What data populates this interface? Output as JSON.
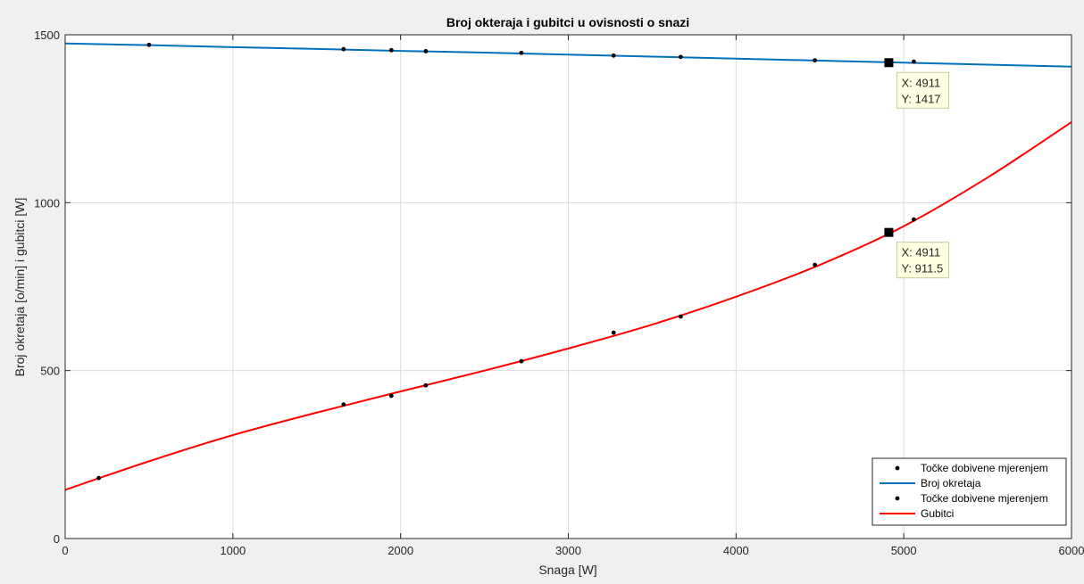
{
  "chart_data": {
    "type": "line",
    "title": "Broj okteraja i gubitci u ovisnosti o snazi",
    "xlabel": "Snaga [W]",
    "ylabel": "Broj okretaja [o/min] i gubitci [W]",
    "xlim": [
      0,
      6000
    ],
    "ylim": [
      0,
      1500
    ],
    "xticks": [
      0,
      1000,
      2000,
      3000,
      4000,
      5000,
      6000
    ],
    "yticks": [
      0,
      500,
      1000,
      1500
    ],
    "grid": true,
    "legend_position": "bottom-right",
    "series": [
      {
        "name": "Točke dobivene mjerenjem",
        "kind": "markers",
        "color": "#000000",
        "x": [
          500,
          1660,
          1945,
          2150,
          2720,
          3270,
          3670,
          4470,
          5060
        ],
        "y": [
          1470,
          1457,
          1454,
          1451,
          1446,
          1438,
          1434,
          1424,
          1420
        ]
      },
      {
        "name": "Broj okretaja",
        "kind": "line",
        "color": "#0072bd",
        "x": [
          0,
          500,
          1000,
          1500,
          2000,
          2500,
          3000,
          3500,
          4000,
          4500,
          5000,
          5500,
          6000
        ],
        "y": [
          1474,
          1469,
          1463,
          1458,
          1452,
          1447,
          1441,
          1435,
          1429,
          1423,
          1417,
          1411,
          1405
        ]
      },
      {
        "name": "Točke dobivene mjerenjem",
        "kind": "markers",
        "color": "#000000",
        "x": [
          200,
          1660,
          1945,
          2150,
          2720,
          3270,
          3670,
          4470,
          5060
        ],
        "y": [
          180,
          399,
          425,
          456,
          528,
          613,
          661,
          815,
          950
        ]
      },
      {
        "name": "Gubitci",
        "kind": "line",
        "color": "#ff0000",
        "x": [
          0,
          500,
          1000,
          1500,
          2000,
          2500,
          3000,
          3500,
          4000,
          4500,
          5000,
          5500,
          6000
        ],
        "y": [
          145,
          230,
          308,
          375,
          438,
          500,
          566,
          637,
          720,
          815,
          930,
          1075,
          1240
        ]
      }
    ],
    "datatips": [
      {
        "x": 4911,
        "y": 1417,
        "line1": "X: 4911",
        "line2": "Y: 1417"
      },
      {
        "x": 4911,
        "y": 911.5,
        "line1": "X: 4911",
        "line2": "Y: 911.5"
      }
    ]
  }
}
